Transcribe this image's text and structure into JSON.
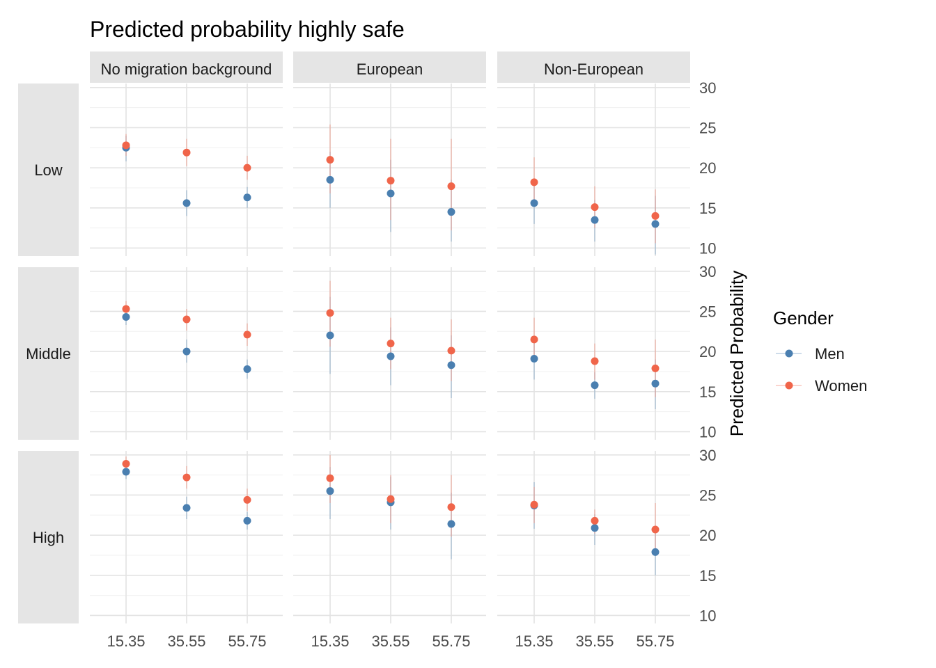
{
  "chart_data": {
    "type": "scatter",
    "title": "Predicted probability highly safe",
    "ylabel": "Predicted Probability",
    "xlabel": "",
    "x_ticks": [
      "15.35",
      "35.55",
      "55.75"
    ],
    "y_ticks": [
      10,
      15,
      20,
      25,
      30
    ],
    "ylim": [
      9,
      30.5
    ],
    "grid": true,
    "facet_columns": [
      "No migration background",
      "European",
      "Non-European"
    ],
    "facet_rows": [
      "Low",
      "Middle",
      "High"
    ],
    "legend": {
      "title": "Gender",
      "position": "right",
      "entries": [
        {
          "name": "Men",
          "color": "#4a7fb0"
        },
        {
          "name": "Women",
          "color": "#f0654a"
        }
      ]
    },
    "panels": [
      {
        "row": "Low",
        "col": "No migration background",
        "series": [
          {
            "name": "Men",
            "points": [
              [
                15.35,
                22.5,
                20.8,
                24.0
              ],
              [
                35.55,
                15.6,
                14.0,
                17.2
              ],
              [
                55.75,
                16.3,
                15.0,
                17.6
              ]
            ]
          },
          {
            "name": "Women",
            "points": [
              [
                15.35,
                22.8,
                21.5,
                24.2
              ],
              [
                35.55,
                21.9,
                20.2,
                23.6
              ],
              [
                55.75,
                20.0,
                18.5,
                21.5
              ]
            ]
          }
        ]
      },
      {
        "row": "Low",
        "col": "European",
        "series": [
          {
            "name": "Men",
            "points": [
              [
                15.35,
                18.5,
                15.0,
                22.0
              ],
              [
                35.55,
                16.8,
                12.0,
                21.0
              ],
              [
                55.75,
                14.5,
                10.8,
                18.5
              ]
            ]
          },
          {
            "name": "Women",
            "points": [
              [
                15.35,
                21.0,
                16.8,
                25.4
              ],
              [
                35.55,
                18.4,
                13.5,
                23.6
              ],
              [
                55.75,
                17.7,
                12.2,
                23.6
              ]
            ]
          }
        ]
      },
      {
        "row": "Low",
        "col": "Non-European",
        "series": [
          {
            "name": "Men",
            "points": [
              [
                15.35,
                15.6,
                13.0,
                18.5
              ],
              [
                35.55,
                13.5,
                10.8,
                16.0
              ],
              [
                55.75,
                13.0,
                9.2,
                16.5
              ]
            ]
          },
          {
            "name": "Women",
            "points": [
              [
                15.35,
                18.2,
                15.2,
                21.3
              ],
              [
                35.55,
                15.1,
                12.5,
                17.7
              ],
              [
                55.75,
                14.0,
                10.6,
                17.3
              ]
            ]
          }
        ]
      },
      {
        "row": "Middle",
        "col": "No migration background",
        "series": [
          {
            "name": "Men",
            "points": [
              [
                15.35,
                24.3,
                23.3,
                25.3
              ],
              [
                35.55,
                20.0,
                18.6,
                21.5
              ],
              [
                55.75,
                17.8,
                16.6,
                19.0
              ]
            ]
          },
          {
            "name": "Women",
            "points": [
              [
                15.35,
                25.3,
                24.3,
                26.3
              ],
              [
                35.55,
                24.0,
                22.6,
                25.3
              ],
              [
                55.75,
                22.1,
                20.7,
                23.5
              ]
            ]
          }
        ]
      },
      {
        "row": "Middle",
        "col": "European",
        "series": [
          {
            "name": "Men",
            "points": [
              [
                15.35,
                22.0,
                17.2,
                26.8
              ],
              [
                35.55,
                19.4,
                15.8,
                23.0
              ],
              [
                55.75,
                18.3,
                14.2,
                22.0
              ]
            ]
          },
          {
            "name": "Women",
            "points": [
              [
                15.35,
                24.8,
                20.6,
                28.8
              ],
              [
                35.55,
                21.0,
                17.8,
                24.2
              ],
              [
                55.75,
                20.1,
                16.3,
                24.0
              ]
            ]
          }
        ]
      },
      {
        "row": "Middle",
        "col": "Non-European",
        "series": [
          {
            "name": "Men",
            "points": [
              [
                15.35,
                19.1,
                16.5,
                21.5
              ],
              [
                35.55,
                15.8,
                14.1,
                17.4
              ],
              [
                55.75,
                16.0,
                12.8,
                19.0
              ]
            ]
          },
          {
            "name": "Women",
            "points": [
              [
                15.35,
                21.5,
                18.8,
                24.2
              ],
              [
                35.55,
                18.8,
                16.5,
                21.0
              ],
              [
                55.75,
                17.9,
                14.3,
                21.5
              ]
            ]
          }
        ]
      },
      {
        "row": "High",
        "col": "No migration background",
        "series": [
          {
            "name": "Men",
            "points": [
              [
                15.35,
                27.9,
                27.0,
                28.8
              ],
              [
                35.55,
                23.4,
                22.0,
                24.8
              ],
              [
                55.75,
                21.8,
                20.7,
                22.9
              ]
            ]
          },
          {
            "name": "Women",
            "points": [
              [
                15.35,
                28.9,
                28.0,
                29.8
              ],
              [
                35.55,
                27.2,
                25.8,
                28.6
              ],
              [
                55.75,
                24.4,
                23.0,
                25.8
              ]
            ]
          }
        ]
      },
      {
        "row": "High",
        "col": "European",
        "series": [
          {
            "name": "Men",
            "points": [
              [
                15.35,
                25.5,
                22.0,
                28.5
              ],
              [
                35.55,
                24.1,
                20.7,
                27.3
              ],
              [
                55.75,
                21.4,
                17.0,
                25.3
              ]
            ]
          },
          {
            "name": "Women",
            "points": [
              [
                15.35,
                27.1,
                24.0,
                30.0
              ],
              [
                35.55,
                24.5,
                21.5,
                27.5
              ],
              [
                55.75,
                23.5,
                19.8,
                27.5
              ]
            ]
          }
        ]
      },
      {
        "row": "High",
        "col": "Non-European",
        "series": [
          {
            "name": "Men",
            "points": [
              [
                15.35,
                23.7,
                20.8,
                26.6
              ],
              [
                35.55,
                20.9,
                18.8,
                22.6
              ],
              [
                55.75,
                17.9,
                15.0,
                20.8
              ]
            ]
          },
          {
            "name": "Women",
            "points": [
              [
                15.35,
                23.8,
                21.5,
                26.0
              ],
              [
                35.55,
                21.8,
                20.2,
                23.2
              ],
              [
                55.75,
                20.7,
                17.5,
                24.0
              ]
            ]
          }
        ]
      }
    ]
  }
}
